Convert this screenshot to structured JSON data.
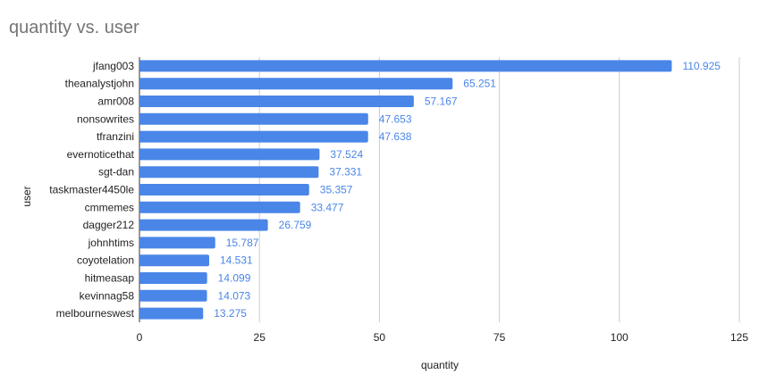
{
  "chart_data": {
    "type": "bar",
    "orientation": "horizontal",
    "title": "quantity vs. user",
    "xlabel": "quantity",
    "ylabel": "user",
    "xlim": [
      0,
      125
    ],
    "xticks": [
      0,
      25,
      50,
      75,
      100,
      125
    ],
    "grid": true,
    "legend": "none",
    "bar_color": "#4a86e8",
    "label_color": "#4a86e8",
    "categories": [
      "jfang003",
      "theanalystjohn",
      "amr008",
      "nonsowrites",
      "tfranzini",
      "evernoticethat",
      "sgt-dan",
      "taskmaster4450le",
      "cmmemes",
      "dagger212",
      "johnhtims",
      "coyotelation",
      "hitmeasap",
      "kevinnag58",
      "melbourneswest"
    ],
    "values": [
      110.925,
      65.251,
      57.167,
      47.653,
      47.638,
      37.524,
      37.331,
      35.357,
      33.477,
      26.759,
      15.787,
      14.531,
      14.099,
      14.073,
      13.275
    ]
  }
}
